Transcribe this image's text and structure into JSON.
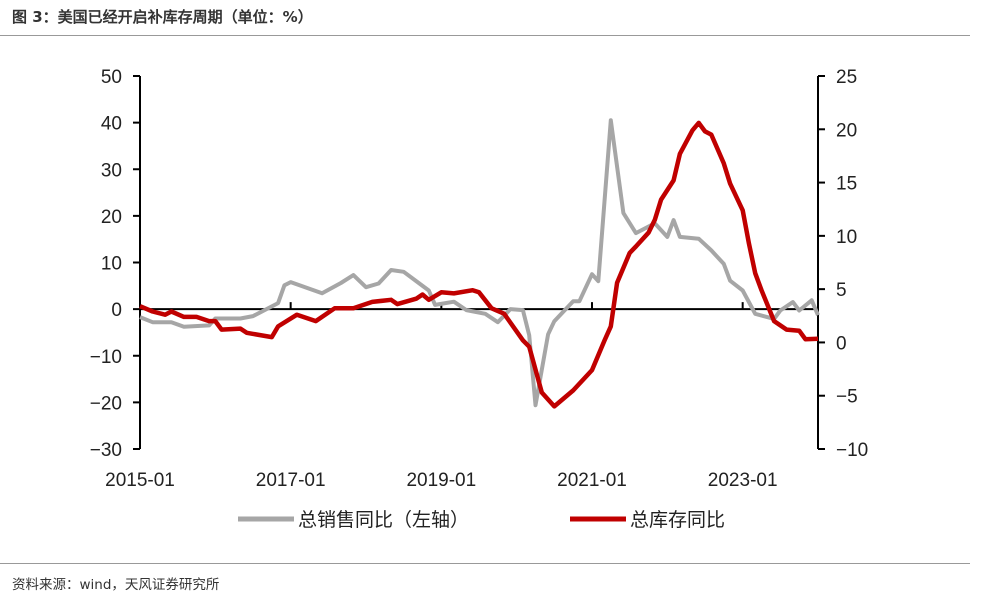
{
  "title": "图 3：美国已经开启补库存周期（单位：%）",
  "source": "资料来源：wind，天风证券研究所",
  "chart_data": {
    "type": "line",
    "title": "图 3：美国已经开启补库存周期（单位：%）",
    "x_ticks": [
      "2015-01",
      "2017-01",
      "2019-01",
      "2021-01",
      "2023-01"
    ],
    "x_range": [
      "2015-01",
      "2024-01"
    ],
    "y_left": {
      "ticks": [
        50,
        40,
        30,
        20,
        10,
        0,
        -10,
        -20,
        -30
      ],
      "range": [
        -30,
        50
      ]
    },
    "y_right": {
      "ticks": [
        25,
        20,
        15,
        10,
        5,
        0,
        -5,
        -10
      ],
      "range": [
        -10,
        25
      ]
    },
    "legend_position": "bottom",
    "series": [
      {
        "name": "总销售同比（左轴）",
        "axis": "left",
        "color": "#A6A6A6",
        "points": [
          [
            "2015-01",
            -1.7
          ],
          [
            "2015-03",
            -2.8
          ],
          [
            "2015-06",
            -2.8
          ],
          [
            "2015-08",
            -3.8
          ],
          [
            "2015-12",
            -3.5
          ],
          [
            "2016-01",
            -2.0
          ],
          [
            "2016-05",
            -2.0
          ],
          [
            "2016-07",
            -1.5
          ],
          [
            "2016-11",
            1.3
          ],
          [
            "2016-12",
            5.1
          ],
          [
            "2017-01",
            5.8
          ],
          [
            "2017-06",
            3.4
          ],
          [
            "2017-09",
            5.6
          ],
          [
            "2017-11",
            7.3
          ],
          [
            "2018-01",
            4.7
          ],
          [
            "2018-03",
            5.5
          ],
          [
            "2018-05",
            8.4
          ],
          [
            "2018-07",
            8.0
          ],
          [
            "2018-09",
            6.0
          ],
          [
            "2018-11",
            4.0
          ],
          [
            "2018-12",
            0.9
          ],
          [
            "2019-03",
            1.6
          ],
          [
            "2019-05",
            -0.2
          ],
          [
            "2019-08",
            -1.0
          ],
          [
            "2019-10",
            -2.8
          ],
          [
            "2019-12",
            0.0
          ],
          [
            "2020-02",
            -0.2
          ],
          [
            "2020-03",
            -5.6
          ],
          [
            "2020-04",
            -20.6
          ],
          [
            "2020-06",
            -5.4
          ],
          [
            "2020-07",
            -2.6
          ],
          [
            "2020-10",
            1.7
          ],
          [
            "2020-11",
            1.7
          ],
          [
            "2021-01",
            7.5
          ],
          [
            "2021-02",
            6.0
          ],
          [
            "2021-04",
            40.5
          ],
          [
            "2021-06",
            20.6
          ],
          [
            "2021-08",
            16.3
          ],
          [
            "2021-11",
            18.4
          ],
          [
            "2022-01",
            15.5
          ],
          [
            "2022-02",
            19.1
          ],
          [
            "2022-03",
            15.5
          ],
          [
            "2022-06",
            15.1
          ],
          [
            "2022-08",
            12.6
          ],
          [
            "2022-10",
            9.7
          ],
          [
            "2022-11",
            6.1
          ],
          [
            "2023-01",
            4.0
          ],
          [
            "2023-03",
            -1.0
          ],
          [
            "2023-06",
            -2.1
          ],
          [
            "2023-07",
            -0.3
          ],
          [
            "2023-09",
            1.5
          ],
          [
            "2023-10",
            -0.3
          ],
          [
            "2023-12",
            1.9
          ],
          [
            "2024-01",
            -1.3
          ]
        ]
      },
      {
        "name": "总库存同比",
        "axis": "right",
        "color": "#C00000",
        "points": [
          [
            "2015-01",
            3.4
          ],
          [
            "2015-03",
            2.9
          ],
          [
            "2015-05",
            2.6
          ],
          [
            "2015-06",
            2.9
          ],
          [
            "2015-08",
            2.4
          ],
          [
            "2015-10",
            2.4
          ],
          [
            "2015-12",
            2.0
          ],
          [
            "2016-01",
            2.0
          ],
          [
            "2016-02",
            1.2
          ],
          [
            "2016-05",
            1.3
          ],
          [
            "2016-06",
            0.9
          ],
          [
            "2016-10",
            0.5
          ],
          [
            "2016-11",
            1.5
          ],
          [
            "2017-02",
            2.6
          ],
          [
            "2017-05",
            2.0
          ],
          [
            "2017-08",
            3.2
          ],
          [
            "2017-11",
            3.2
          ],
          [
            "2018-02",
            3.8
          ],
          [
            "2018-05",
            4.0
          ],
          [
            "2018-06",
            3.6
          ],
          [
            "2018-09",
            4.1
          ],
          [
            "2018-10",
            4.5
          ],
          [
            "2018-11",
            4.0
          ],
          [
            "2019-01",
            4.7
          ],
          [
            "2019-03",
            4.6
          ],
          [
            "2019-06",
            4.9
          ],
          [
            "2019-07",
            4.7
          ],
          [
            "2019-09",
            3.2
          ],
          [
            "2019-11",
            2.7
          ],
          [
            "2020-02",
            0.2
          ],
          [
            "2020-03",
            -0.4
          ],
          [
            "2020-05",
            -4.7
          ],
          [
            "2020-07",
            -6.0
          ],
          [
            "2020-10",
            -4.5
          ],
          [
            "2021-01",
            -2.6
          ],
          [
            "2021-03",
            0.2
          ],
          [
            "2021-04",
            1.5
          ],
          [
            "2021-05",
            5.6
          ],
          [
            "2021-07",
            8.4
          ],
          [
            "2021-08",
            9.0
          ],
          [
            "2021-10",
            10.3
          ],
          [
            "2021-11",
            11.5
          ],
          [
            "2021-12",
            13.4
          ],
          [
            "2022-02",
            15.2
          ],
          [
            "2022-03",
            17.7
          ],
          [
            "2022-05",
            19.9
          ],
          [
            "2022-06",
            20.6
          ],
          [
            "2022-07",
            19.8
          ],
          [
            "2022-08",
            19.5
          ],
          [
            "2022-10",
            16.8
          ],
          [
            "2022-11",
            14.9
          ],
          [
            "2023-01",
            12.4
          ],
          [
            "2023-02",
            9.3
          ],
          [
            "2023-03",
            6.5
          ],
          [
            "2023-04",
            4.9
          ],
          [
            "2023-06",
            2.0
          ],
          [
            "2023-08",
            1.2
          ],
          [
            "2023-10",
            1.1
          ],
          [
            "2023-11",
            0.3
          ],
          [
            "2024-01",
            0.35
          ]
        ]
      }
    ]
  }
}
